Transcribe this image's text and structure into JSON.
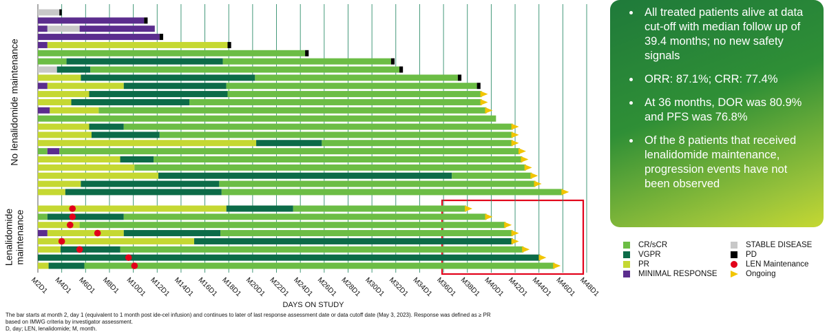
{
  "chart_data": {
    "type": "swimmer",
    "xlabel": "DAYS ON STUDY",
    "xlim": [
      2,
      48
    ],
    "xticks": [
      {
        "value": 2,
        "label": "M2D1"
      },
      {
        "value": 4,
        "label": "M4D1"
      },
      {
        "value": 6,
        "label": "M6D1"
      },
      {
        "value": 8,
        "label": "M8D1"
      },
      {
        "value": 10,
        "label": "M10D1"
      },
      {
        "value": 12,
        "label": "M12D1"
      },
      {
        "value": 14,
        "label": "M14D1"
      },
      {
        "value": 16,
        "label": "M16D1"
      },
      {
        "value": 18,
        "label": "M18D1"
      },
      {
        "value": 20,
        "label": "M20D1"
      },
      {
        "value": 22,
        "label": "M22D1"
      },
      {
        "value": 24,
        "label": "M24D1"
      },
      {
        "value": 26,
        "label": "M26D1"
      },
      {
        "value": 28,
        "label": "M28D1"
      },
      {
        "value": 30,
        "label": "M30D1"
      },
      {
        "value": 32,
        "label": "M32D1"
      },
      {
        "value": 34,
        "label": "M34D1"
      },
      {
        "value": 36,
        "label": "M36D1"
      },
      {
        "value": 38,
        "label": "M38D1"
      },
      {
        "value": 40,
        "label": "M40D1"
      },
      {
        "value": 42,
        "label": "M42D1"
      },
      {
        "value": 44,
        "label": "M44D1"
      },
      {
        "value": 46,
        "label": "M46D1"
      },
      {
        "value": 48,
        "label": "M48D1"
      }
    ],
    "grid": true,
    "legend": [
      {
        "name": "CR/sCR",
        "color": "#6cbd45",
        "marker": "square"
      },
      {
        "name": "VGPR",
        "color": "#0c6b48",
        "marker": "square"
      },
      {
        "name": "PR",
        "color": "#c5d832",
        "marker": "square"
      },
      {
        "name": "MINIMAL RESPONSE",
        "color": "#5b2d8e",
        "marker": "square"
      },
      {
        "name": "STABLE DISEASE",
        "color": "#c8c8c8",
        "marker": "square"
      },
      {
        "name": "PD",
        "color": "#000000",
        "marker": "square"
      },
      {
        "name": "LEN Maintenance",
        "color": "#e2001a",
        "marker": "circle"
      },
      {
        "name": "Ongoing",
        "color": "#f2c500",
        "marker": "triangle"
      }
    ],
    "groups": [
      {
        "label": [
          "No lenalidomide maintenance"
        ],
        "patients": [
          {
            "segments": [
              [
                2,
                3.8,
                "STABLE DISEASE"
              ],
              [
                3.8,
                4.0,
                "PD"
              ]
            ]
          },
          {
            "segments": [
              [
                2,
                10.9,
                "MINIMAL RESPONSE"
              ],
              [
                10.9,
                11.2,
                "PD"
              ]
            ]
          },
          {
            "segments": [
              [
                2,
                2.8,
                "MINIMAL RESPONSE"
              ],
              [
                2.8,
                5.5,
                "STABLE DISEASE"
              ],
              [
                5.5,
                11.8,
                "MINIMAL RESPONSE"
              ]
            ]
          },
          {
            "segments": [
              [
                2,
                12.2,
                "MINIMAL RESPONSE"
              ],
              [
                12.2,
                12.5,
                "PD"
              ]
            ]
          },
          {
            "segments": [
              [
                2,
                2.8,
                "MINIMAL RESPONSE"
              ],
              [
                2.8,
                17.9,
                "PR"
              ],
              [
                17.9,
                18.2,
                "PD"
              ]
            ]
          },
          {
            "segments": [
              [
                2,
                24.4,
                "CR/sCR"
              ],
              [
                24.4,
                24.7,
                "PD"
              ]
            ]
          },
          {
            "segments": [
              [
                2,
                4.4,
                "CR/sCR"
              ],
              [
                4.4,
                17.5,
                "VGPR"
              ],
              [
                17.5,
                31.6,
                "CR/sCR"
              ],
              [
                31.6,
                31.9,
                "PD"
              ]
            ]
          },
          {
            "segments": [
              [
                2,
                3.6,
                "STABLE DISEASE"
              ],
              [
                3.6,
                6.4,
                "VGPR"
              ],
              [
                6.4,
                32.3,
                "CR/sCR"
              ],
              [
                32.3,
                32.6,
                "PD"
              ]
            ]
          },
          {
            "segments": [
              [
                2,
                5.6,
                "PR"
              ],
              [
                5.6,
                20.2,
                "VGPR"
              ],
              [
                20.2,
                37.2,
                "CR/sCR"
              ],
              [
                37.2,
                37.5,
                "PD"
              ]
            ]
          },
          {
            "segments": [
              [
                2,
                2.8,
                "MINIMAL RESPONSE"
              ],
              [
                2.8,
                9.2,
                "PR"
              ],
              [
                9.2,
                17.8,
                "VGPR"
              ],
              [
                17.8,
                38.8,
                "CR/sCR"
              ],
              [
                38.8,
                39.1,
                "PD"
              ]
            ]
          },
          {
            "segments": [
              [
                2,
                6.3,
                "PR"
              ],
              [
                6.3,
                17.9,
                "VGPR"
              ],
              [
                17.9,
                39.2,
                "CR/sCR"
              ]
            ],
            "ongoing": true
          },
          {
            "segments": [
              [
                2,
                4.8,
                "PR"
              ],
              [
                4.8,
                14.7,
                "VGPR"
              ],
              [
                14.7,
                39.2,
                "CR/sCR"
              ]
            ],
            "ongoing": true
          },
          {
            "segments": [
              [
                2,
                3.0,
                "MINIMAL RESPONSE"
              ],
              [
                3.0,
                7.1,
                "PR"
              ],
              [
                7.1,
                39.6,
                "CR/sCR"
              ]
            ],
            "ongoing": true
          },
          {
            "segments": [
              [
                2,
                40.4,
                "CR/sCR"
              ]
            ]
          },
          {
            "segments": [
              [
                2,
                6.3,
                "PR"
              ],
              [
                6.3,
                9.2,
                "VGPR"
              ],
              [
                9.2,
                41.8,
                "CR/sCR"
              ]
            ],
            "ongoing": true
          },
          {
            "segments": [
              [
                2,
                6.5,
                "PR"
              ],
              [
                6.5,
                12.2,
                "VGPR"
              ],
              [
                12.2,
                41.8,
                "CR/sCR"
              ]
            ],
            "ongoing": true
          },
          {
            "segments": [
              [
                2,
                20.3,
                "PR"
              ],
              [
                20.3,
                25.8,
                "VGPR"
              ],
              [
                25.8,
                41.8,
                "CR/sCR"
              ]
            ],
            "ongoing": true
          },
          {
            "segments": [
              [
                2,
                2.8,
                "CR/sCR"
              ],
              [
                2.8,
                3.8,
                "MINIMAL RESPONSE"
              ],
              [
                3.8,
                42.4,
                "CR/sCR"
              ]
            ],
            "ongoing": true
          },
          {
            "segments": [
              [
                2,
                8.9,
                "PR"
              ],
              [
                8.9,
                11.7,
                "VGPR"
              ],
              [
                11.7,
                42.6,
                "CR/sCR"
              ]
            ],
            "ongoing": true
          },
          {
            "segments": [
              [
                2,
                10.1,
                "PR"
              ],
              [
                10.1,
                42.9,
                "CR/sCR"
              ]
            ],
            "ongoing": true
          },
          {
            "segments": [
              [
                2,
                12.1,
                "PR"
              ],
              [
                12.1,
                36.7,
                "VGPR"
              ],
              [
                36.7,
                43.4,
                "CR/sCR"
              ]
            ],
            "ongoing": true
          },
          {
            "segments": [
              [
                2,
                5.6,
                "PR"
              ],
              [
                5.6,
                17.2,
                "VGPR"
              ],
              [
                17.2,
                43.7,
                "CR/sCR"
              ]
            ],
            "ongoing": true
          },
          {
            "segments": [
              [
                2,
                4.3,
                "PR"
              ],
              [
                4.3,
                17.4,
                "VGPR"
              ],
              [
                17.4,
                46.0,
                "CR/sCR"
              ]
            ],
            "ongoing": true
          }
        ]
      },
      {
        "label": [
          "Lenalidomide",
          "maintenance"
        ],
        "patients": [
          {
            "segments": [
              [
                2,
                17.8,
                "PR"
              ],
              [
                17.8,
                23.4,
                "VGPR"
              ],
              [
                23.4,
                37.9,
                "CR/sCR"
              ]
            ],
            "ongoing": true,
            "len": 4.9
          },
          {
            "segments": [
              [
                2,
                2.8,
                "CR/sCR"
              ],
              [
                2.8,
                9.2,
                "VGPR"
              ],
              [
                9.2,
                39.6,
                "CR/sCR"
              ]
            ],
            "ongoing": true,
            "len": 4.9
          },
          {
            "segments": [
              [
                2,
                5.5,
                "PR"
              ],
              [
                5.5,
                41.2,
                "CR/sCR"
              ]
            ],
            "ongoing": true,
            "len": 4.7
          },
          {
            "segments": [
              [
                2,
                2.8,
                "MINIMAL RESPONSE"
              ],
              [
                2.8,
                9.2,
                "PR"
              ],
              [
                9.2,
                17.3,
                "VGPR"
              ],
              [
                17.3,
                41.8,
                "CR/sCR"
              ]
            ],
            "ongoing": true,
            "len": 7.0
          },
          {
            "segments": [
              [
                2,
                15.1,
                "PR"
              ],
              [
                15.1,
                41.8,
                "VGPR"
              ]
            ],
            "ongoing": true,
            "len": 4.0
          },
          {
            "segments": [
              [
                2,
                3.9,
                "PR"
              ],
              [
                3.9,
                8.9,
                "VGPR"
              ],
              [
                8.9,
                42.7,
                "CR/sCR"
              ]
            ],
            "ongoing": true,
            "len": 5.5
          },
          {
            "segments": [
              [
                2,
                44.1,
                "VGPR"
              ]
            ],
            "ongoing": true,
            "len": 9.6
          },
          {
            "segments": [
              [
                2,
                2.9,
                "PR"
              ],
              [
                2.9,
                5.9,
                "VGPR"
              ],
              [
                5.9,
                45.3,
                "CR/sCR"
              ]
            ],
            "ongoing": true,
            "len": 10.1
          }
        ]
      }
    ],
    "summary": [
      "All treated patients alive at data cut-off with median follow up of 39.4 months; no new safety signals",
      "ORR: 87.1%; CRR: 77.4%",
      "At 36 months, DOR was 80.9% and PFS was 76.8%",
      "Of the 8 patients that received lenalidomide maintenance, progression events have not been observed"
    ],
    "footnotes": [
      "The bar starts at month 2, day 1 (equivalent to 1 month post ide-cel infusion) and continues to later of last response assessment date or data cutoff date (May 3, 2023). Response was defined as ≥ PR",
      "based on IMWG criteria by investigator assessment.",
      "D, day; LEN, lenalidomide; M, month."
    ]
  }
}
